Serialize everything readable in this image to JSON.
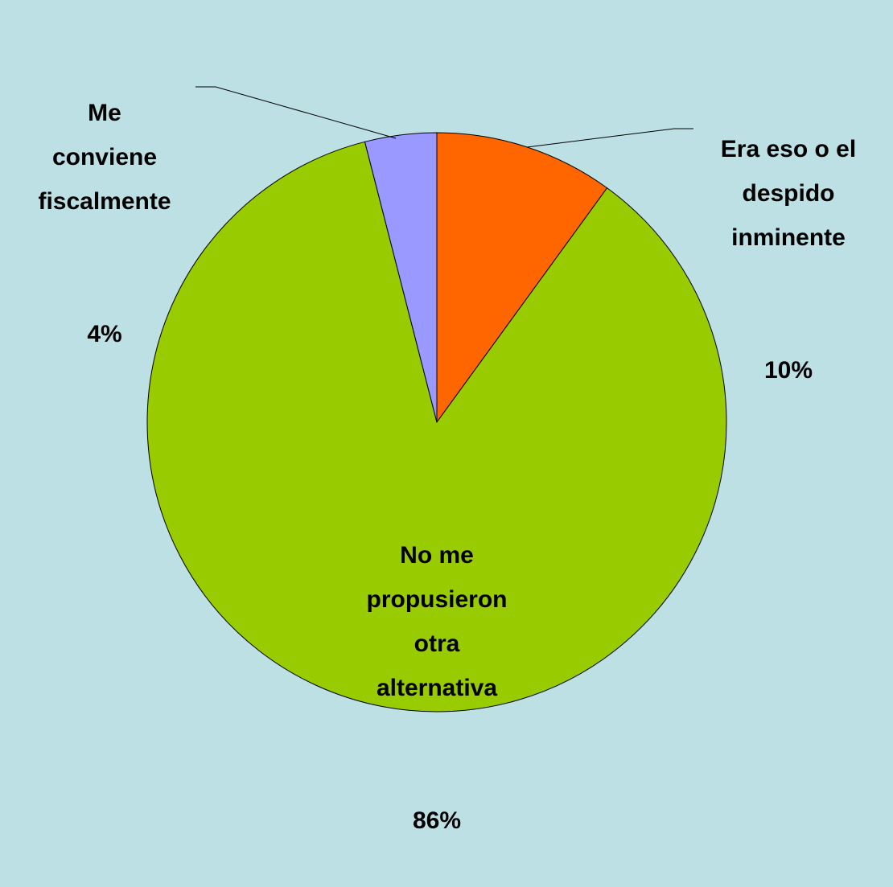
{
  "chart_data": {
    "type": "pie",
    "categories": [
      "Era eso o el\ndespido\ninminente",
      "No me\npropusieron\notra\nalternativa",
      "Me\nconviene\nfiscalmente"
    ],
    "values": [
      10,
      86,
      4
    ],
    "value_labels": [
      "10%",
      "86%",
      "4%"
    ],
    "colors": [
      "#ff6600",
      "#99cc00",
      "#9999ff"
    ]
  }
}
